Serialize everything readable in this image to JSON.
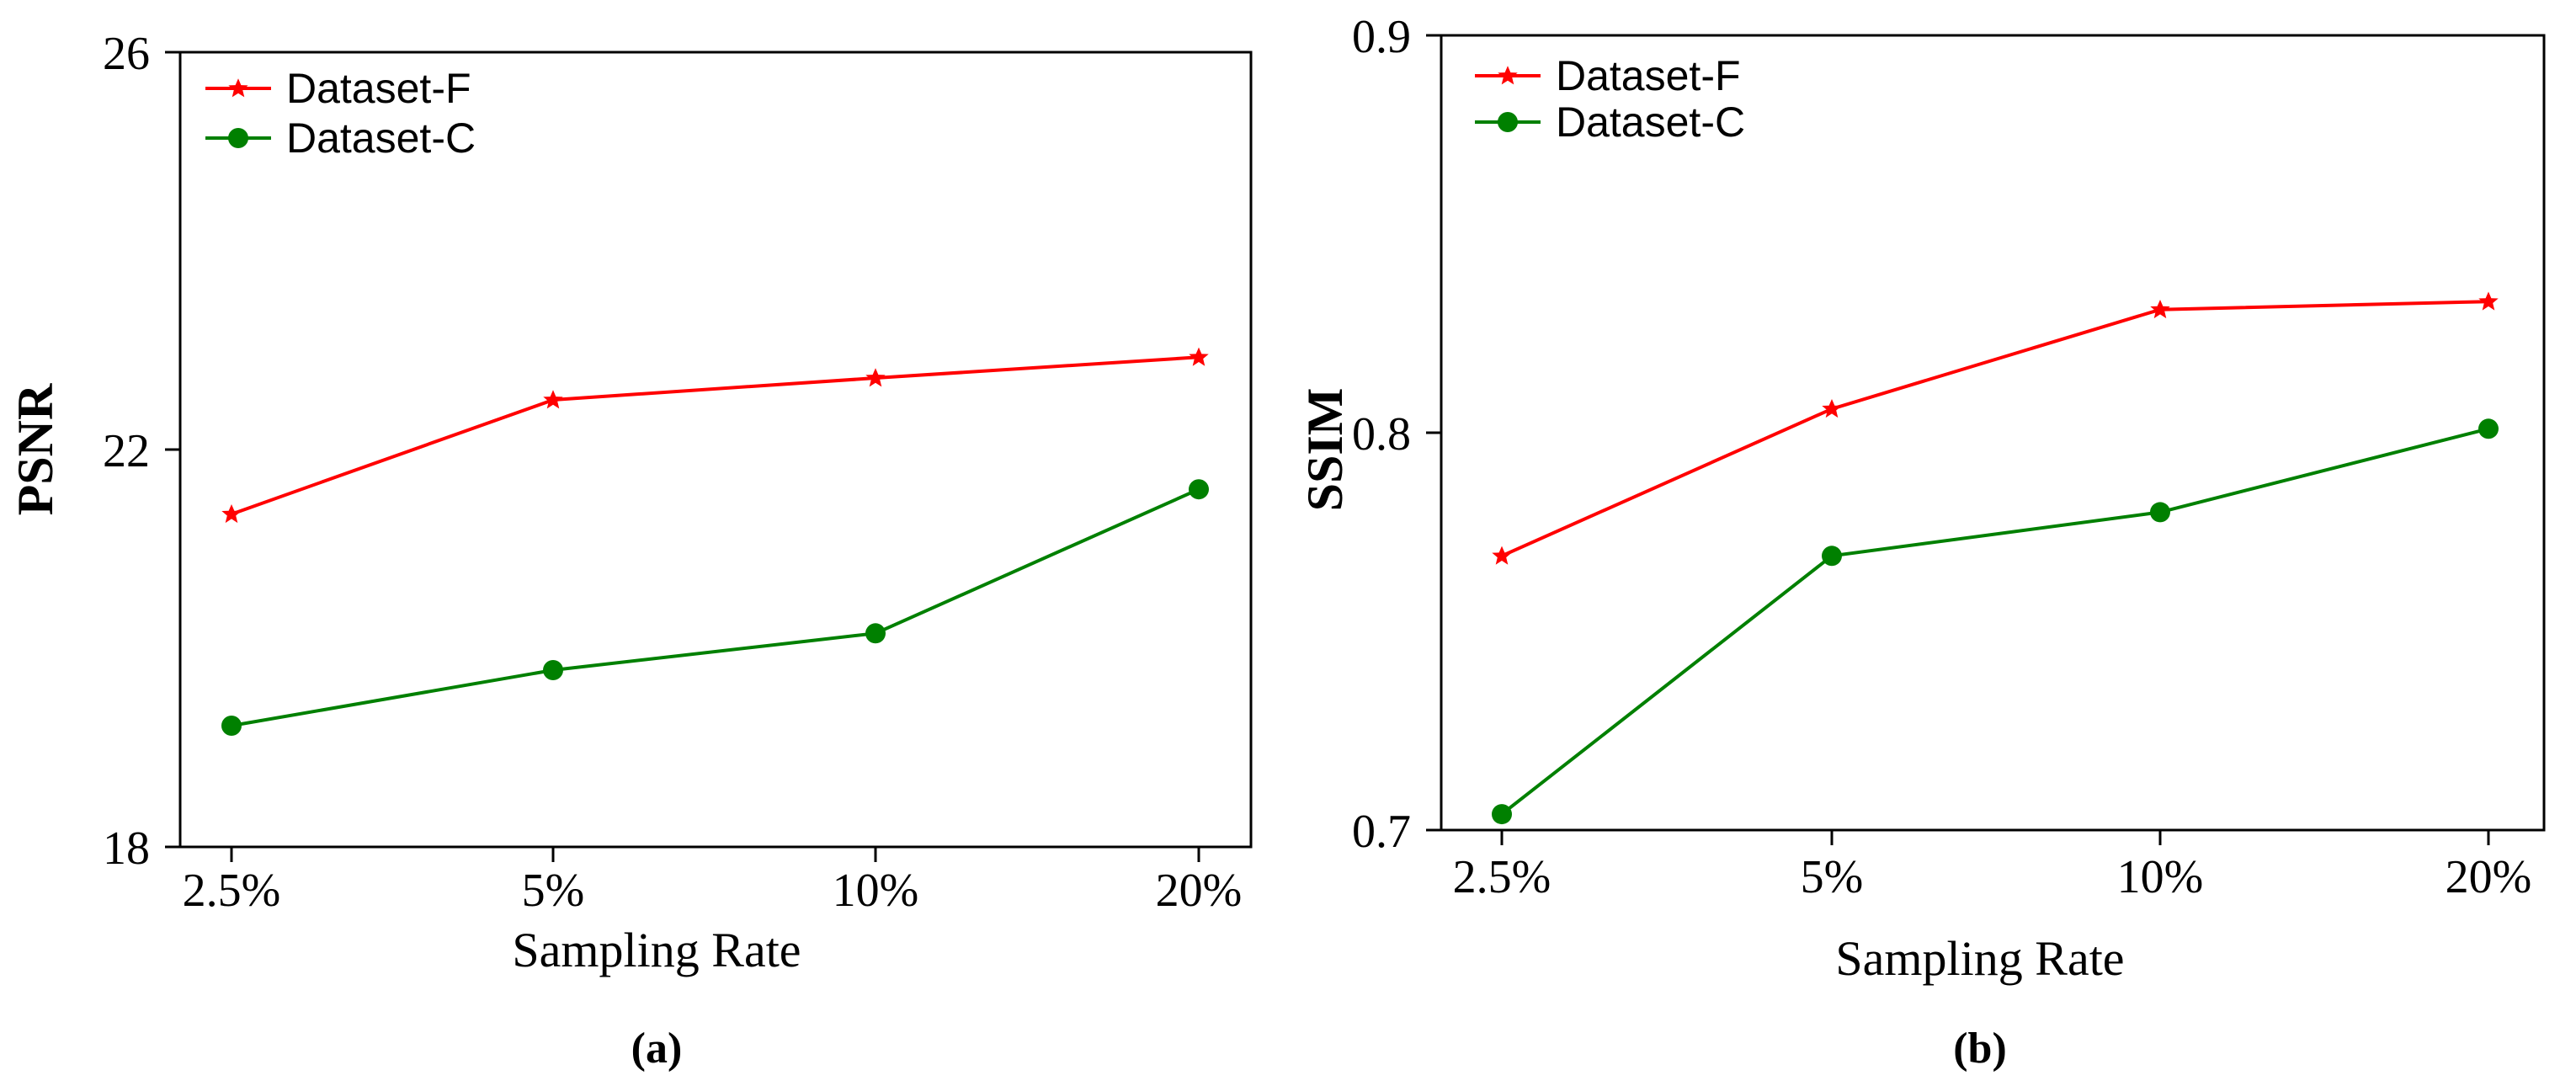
{
  "chart_data": [
    {
      "type": "line",
      "panel_label": "(a)",
      "xlabel": "Sampling Rate",
      "ylabel": "PSNR",
      "categories": [
        "2.5%",
        "5%",
        "10%",
        "20%"
      ],
      "ylim": [
        18,
        26
      ],
      "yticks": [
        "18",
        "22",
        "26"
      ],
      "legend_position": "top-left",
      "series": [
        {
          "name": "Dataset-F",
          "color": "#ff0000",
          "marker": "star",
          "values": [
            21.35,
            22.5,
            22.72,
            22.93
          ]
        },
        {
          "name": "Dataset-C",
          "color": "#008000",
          "marker": "circle",
          "values": [
            19.22,
            19.78,
            20.15,
            21.6
          ]
        }
      ]
    },
    {
      "type": "line",
      "panel_label": "(b)",
      "xlabel": "Sampling Rate",
      "ylabel": "SSIM",
      "categories": [
        "2.5%",
        "5%",
        "10%",
        "20%"
      ],
      "ylim": [
        0.7,
        0.9
      ],
      "yticks": [
        "0.7",
        "0.8",
        "0.9"
      ],
      "legend_position": "top-left",
      "series": [
        {
          "name": "Dataset-F",
          "color": "#ff0000",
          "marker": "star",
          "values": [
            0.769,
            0.806,
            0.831,
            0.833
          ]
        },
        {
          "name": "Dataset-C",
          "color": "#008000",
          "marker": "circle",
          "values": [
            0.704,
            0.769,
            0.78,
            0.801
          ]
        }
      ]
    }
  ]
}
